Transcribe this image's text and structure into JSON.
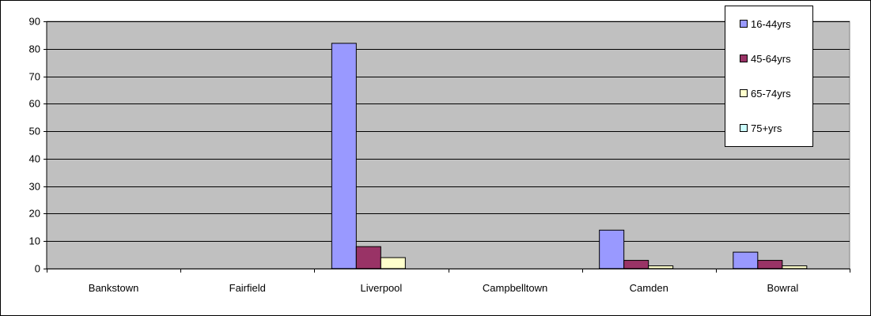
{
  "chart_data": {
    "type": "bar",
    "categories": [
      "Bankstown",
      "Fairfield",
      "Liverpool",
      "Campbelltown",
      "Camden",
      "Bowral"
    ],
    "series": [
      {
        "name": "16-44yrs",
        "color": "#9999FF",
        "values": [
          0,
          0,
          82,
          0,
          14,
          6
        ]
      },
      {
        "name": "45-64yrs",
        "color": "#993366",
        "values": [
          0,
          0,
          8,
          0,
          3,
          3
        ]
      },
      {
        "name": "65-74yrs",
        "color": "#FFFFCC",
        "values": [
          0,
          0,
          4,
          0,
          1,
          1
        ]
      },
      {
        "name": "75+yrs",
        "color": "#CCFFFF",
        "values": [
          0,
          0,
          0,
          0,
          0,
          0
        ]
      }
    ],
    "title": "",
    "xlabel": "",
    "ylabel": "",
    "ylim": [
      0,
      90
    ],
    "yticks": [
      0,
      10,
      20,
      30,
      40,
      50,
      60,
      70,
      80,
      90
    ],
    "grid": true,
    "plot_background": "#C0C0C0",
    "legend_position": "top-right"
  }
}
